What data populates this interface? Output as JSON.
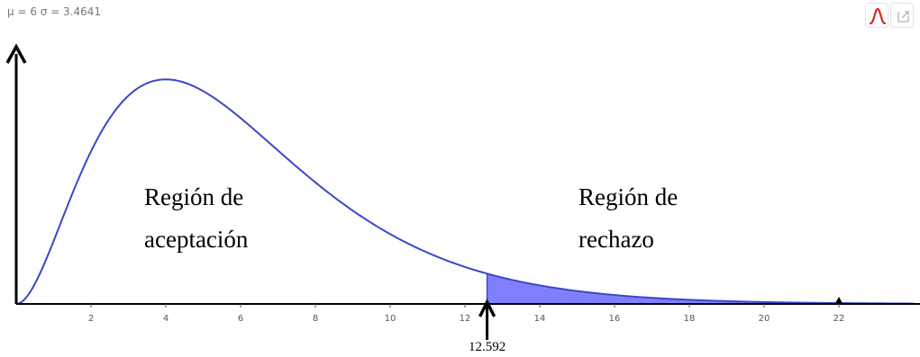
{
  "header": {
    "stats_text": "μ = 6 σ = 3.4641"
  },
  "toolbar": {
    "distribution_icon": "normal-curve-icon",
    "export_icon": "export-icon"
  },
  "colors": {
    "curve": "#3a47c8",
    "rejection_fill": "#8080ff",
    "axis": "#000000",
    "toolbar_icon_red": "#e0241b",
    "toolbar_icon_gray": "#c0c0c0"
  },
  "chart_data": {
    "type": "area",
    "distribution": "chi-square",
    "degrees_of_freedom": 6,
    "mean": 6,
    "sigma": 3.4641,
    "xlim": [
      0,
      24
    ],
    "ylim": [
      0,
      0.145
    ],
    "x_ticks": [
      2,
      4,
      6,
      8,
      10,
      12,
      14,
      16,
      18,
      20,
      22
    ],
    "x_tick_labels": [
      "2",
      "4",
      "6",
      "8",
      "10",
      "12",
      "14",
      "16",
      "18",
      "20",
      "22"
    ],
    "critical_value": 12.592,
    "critical_value_label": "12.592",
    "shaded_region": [
      12.592,
      24
    ],
    "marker_x": 22,
    "regions": [
      {
        "line1": "Región de",
        "line2": "aceptación"
      },
      {
        "line1": "Región de",
        "line2": "rechazo"
      }
    ]
  }
}
